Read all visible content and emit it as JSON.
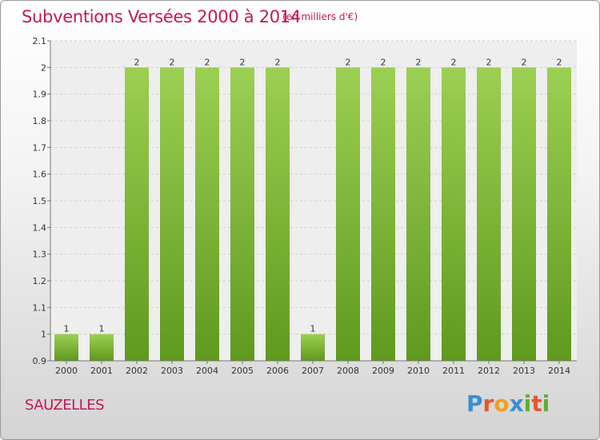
{
  "header": {
    "title": "Subventions Versées 2000 à 2014",
    "subtitle": "(en milliers d'€)"
  },
  "footer": {
    "commune": "SAUZELLES",
    "brand": "Proxiti",
    "brand_colors": [
      "#3a8fd4",
      "#e8542e",
      "#f0a020",
      "#3a8fd4",
      "#5cb030",
      "#e8542e",
      "#5cb030"
    ]
  },
  "chart_data": {
    "type": "bar",
    "categories": [
      "2000",
      "2001",
      "2002",
      "2003",
      "2004",
      "2005",
      "2006",
      "2007",
      "2008",
      "2009",
      "2010",
      "2011",
      "2012",
      "2013",
      "2014"
    ],
    "values": [
      1,
      1,
      2,
      2,
      2,
      2,
      2,
      1,
      2,
      2,
      2,
      2,
      2,
      2,
      2
    ],
    "data_labels": [
      "1",
      "1",
      "2",
      "2",
      "2",
      "2",
      "2",
      "1",
      "2",
      "2",
      "2",
      "2",
      "2",
      "2",
      "2"
    ],
    "title": "Subventions Versées 2000 à 2014",
    "ylim": [
      0.9,
      2.1
    ],
    "yticks": [
      0.9,
      1,
      1.1,
      1.2,
      1.3,
      1.4,
      1.5,
      1.6,
      1.7,
      1.8,
      1.9,
      2,
      2.1
    ],
    "ytick_labels": [
      "0.9",
      "1",
      "1.1",
      "1.2",
      "1.3",
      "1.4",
      "1.5",
      "1.6",
      "1.7",
      "1.8",
      "1.9",
      "2",
      "2.1"
    ],
    "grid": true,
    "bar_color": "#8cc63f",
    "bar_color_dark": "#5e9a1a"
  }
}
